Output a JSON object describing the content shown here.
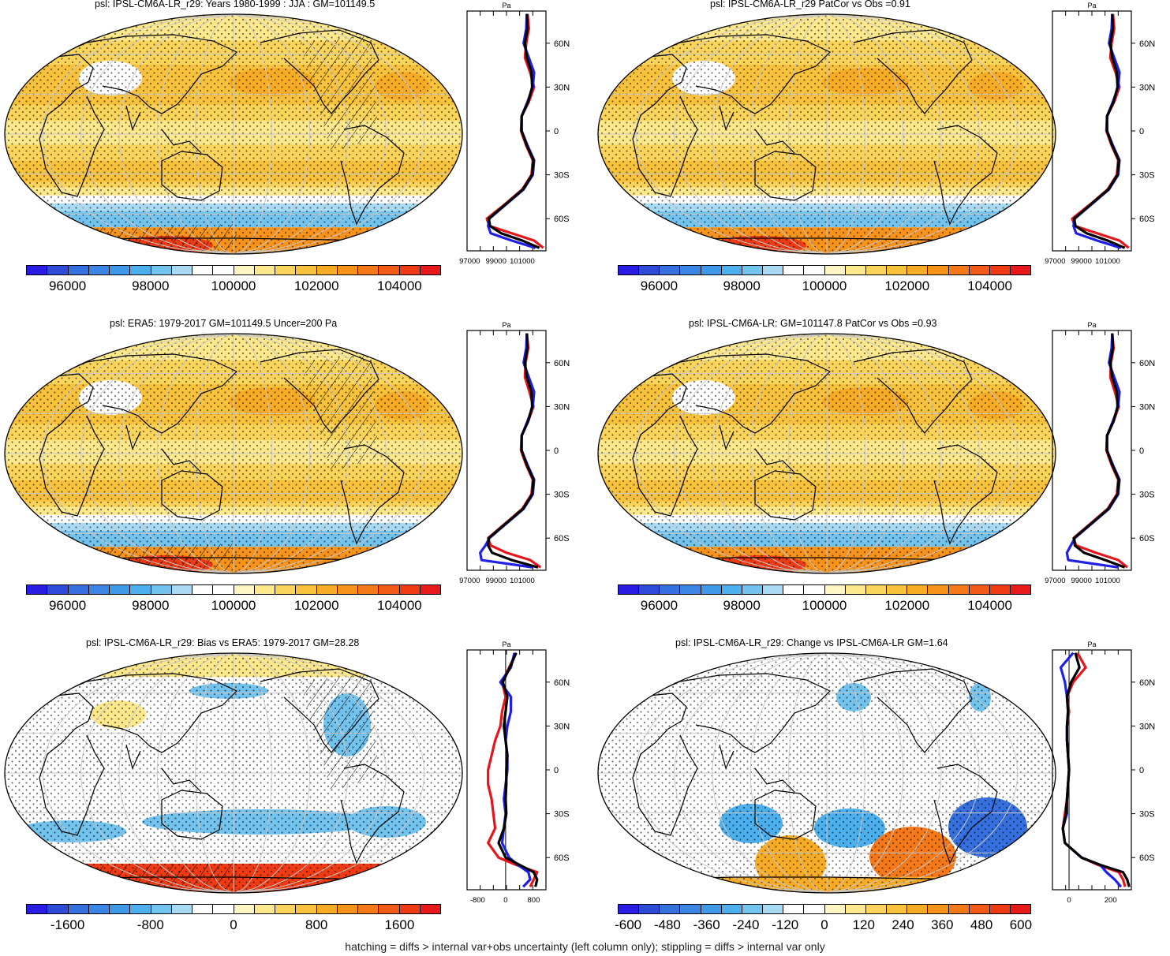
{
  "footer": "hatching = diffs > internal var+obs uncertainty (left column only); stippling = diffs > internal var only",
  "colors": {
    "red_line": "#e8141b",
    "blue_line": "#1f1fe8",
    "black_line": "#000000",
    "graticule": "#c8c8c8"
  },
  "abs_colorbar": {
    "colors": [
      "#2a1de3",
      "#2d4bd8",
      "#3670de",
      "#3b86e4",
      "#3f99e8",
      "#4db0ee",
      "#73c3ef",
      "#a8dbf3",
      "#ffffff",
      "#ffffff",
      "#fff6c4",
      "#fde88c",
      "#fbd55b",
      "#f9c23c",
      "#f8ac25",
      "#f7931b",
      "#f57918",
      "#f25a17",
      "#ef3b14",
      "#e8191a"
    ],
    "labels": [
      "96000",
      "98000",
      "100000",
      "102000",
      "104000"
    ]
  },
  "bias_colorbar": {
    "colors": [
      "#2a1de3",
      "#2d4bd8",
      "#3670de",
      "#3b86e4",
      "#3f99e8",
      "#4db0ee",
      "#73c3ef",
      "#a8dbf3",
      "#ffffff",
      "#ffffff",
      "#fff6c4",
      "#fde88c",
      "#fbd55b",
      "#f9c23c",
      "#f8ac25",
      "#f7931b",
      "#f57918",
      "#f25a17",
      "#ef3b14",
      "#e8191a"
    ],
    "labels": [
      "-1600",
      "-800",
      "0",
      "800",
      "1600"
    ]
  },
  "change_colorbar": {
    "colors": [
      "#2a1de3",
      "#2d4bd8",
      "#3670de",
      "#3b86e4",
      "#3f99e8",
      "#4db0ee",
      "#73c3ef",
      "#a8dbf3",
      "#ffffff",
      "#ffffff",
      "#fff6c4",
      "#fde88c",
      "#fbd55b",
      "#f9c23c",
      "#f8ac25",
      "#f7931b",
      "#f57918",
      "#f25a17",
      "#ef3b14",
      "#e8191a"
    ],
    "labels": [
      "-600",
      "-480",
      "-360",
      "-240",
      "-120",
      "0",
      "120",
      "240",
      "360",
      "480",
      "600"
    ]
  },
  "chart_data": [
    {
      "type": "heatmap",
      "title": "psl: IPSL-CM6A-LR_r29: Years 1980-1999 : JJA : GM=101149.5",
      "map_style": "abs",
      "hatch": true,
      "stipple": true,
      "profile": {
        "unit": "Pa",
        "x_ticks": [
          "97000",
          "99000",
          "101000"
        ],
        "y_ticks": [
          "60N",
          "30N",
          "0",
          "30S",
          "60S"
        ],
        "lat": [
          80,
          70,
          60,
          50,
          40,
          30,
          20,
          10,
          0,
          -10,
          -20,
          -30,
          -40,
          -50,
          -60,
          -65,
          -70,
          -75,
          -80
        ],
        "series": [
          {
            "name": "model",
            "color": "red",
            "values": [
              101400,
              101500,
              101300,
              101200,
              101600,
              101900,
              101500,
              100950,
              100900,
              101300,
              101800,
              101700,
              101000,
              99700,
              98300,
              98500,
              100200,
              101900,
              102600
            ]
          },
          {
            "name": "obs",
            "color": "blue",
            "values": [
              101350,
              101300,
              101100,
              101500,
              101900,
              101800,
              101400,
              100950,
              100950,
              101400,
              101900,
              101800,
              101100,
              99800,
              98500,
              98400,
              98600,
              100200,
              102000
            ]
          },
          {
            "name": "ref",
            "color": "black",
            "values": [
              101350,
              101400,
              101200,
              101350,
              101700,
              101750,
              101450,
              100950,
              100950,
              101350,
              101850,
              101750,
              101050,
              99750,
              98450,
              98550,
              99400,
              101000,
              102300
            ]
          }
        ]
      }
    },
    {
      "type": "heatmap",
      "title": "psl: IPSL-CM6A-LR_r29 PatCor vs Obs =0.91",
      "map_style": "abs",
      "hatch": false,
      "stipple": true,
      "profile": {
        "unit": "Pa",
        "x_ticks": [
          "97000",
          "99000",
          "101000"
        ],
        "y_ticks": [
          "60N",
          "30N",
          "0",
          "30S",
          "60S"
        ],
        "lat": [
          80,
          70,
          60,
          50,
          40,
          30,
          20,
          10,
          0,
          -10,
          -20,
          -30,
          -40,
          -50,
          -60,
          -65,
          -70,
          -75,
          -80
        ],
        "series": [
          {
            "name": "model",
            "color": "red",
            "values": [
              101400,
              101500,
              101300,
              101200,
              101600,
              101900,
              101500,
              100950,
              100900,
              101300,
              101800,
              101700,
              101000,
              99700,
              98300,
              98500,
              100200,
              101900,
              102600
            ]
          },
          {
            "name": "obs",
            "color": "blue",
            "values": [
              101350,
              101300,
              101100,
              101500,
              101900,
              101800,
              101400,
              100950,
              100950,
              101400,
              101900,
              101800,
              101100,
              99800,
              98500,
              98400,
              98600,
              100200,
              102000
            ]
          },
          {
            "name": "ref",
            "color": "black",
            "values": [
              101350,
              101400,
              101200,
              101350,
              101700,
              101750,
              101450,
              100950,
              100950,
              101350,
              101850,
              101750,
              101050,
              99750,
              98450,
              98550,
              99400,
              101000,
              102300
            ]
          }
        ]
      }
    },
    {
      "type": "heatmap",
      "title": "psl: ERA5: 1979-2017 GM=101149.5 Uncer=200 Pa",
      "map_style": "abs",
      "hatch": true,
      "stipple": true,
      "profile": {
        "unit": "Pa",
        "x_ticks": [
          "97000",
          "99000",
          "101000"
        ],
        "y_ticks": [
          "60N",
          "30N",
          "0",
          "30S",
          "60S"
        ],
        "lat": [
          80,
          70,
          60,
          50,
          40,
          30,
          20,
          10,
          0,
          -10,
          -20,
          -30,
          -40,
          -50,
          -60,
          -65,
          -70,
          -75,
          -80
        ],
        "series": [
          {
            "name": "model",
            "color": "red",
            "values": [
              101350,
              101450,
              101250,
              101200,
              101550,
              101850,
              101450,
              100950,
              100900,
              101300,
              101800,
              101700,
              101000,
              99700,
              98400,
              98600,
              99800,
              101600,
              102400
            ]
          },
          {
            "name": "obs",
            "color": "blue",
            "values": [
              101350,
              101300,
              101100,
              101500,
              101900,
              101800,
              101400,
              100950,
              100950,
              101400,
              101900,
              101800,
              101100,
              99800,
              98500,
              98200,
              97800,
              97900,
              101800
            ]
          },
          {
            "name": "ref",
            "color": "black",
            "values": [
              101350,
              101400,
              101200,
              101350,
              101700,
              101750,
              101450,
              100950,
              100950,
              101350,
              101850,
              101750,
              101050,
              99750,
              98450,
              98400,
              98700,
              100200,
              102200
            ]
          }
        ]
      }
    },
    {
      "type": "heatmap",
      "title": "psl: IPSL-CM6A-LR: GM=101147.8 PatCor vs Obs =0.93",
      "map_style": "abs",
      "hatch": false,
      "stipple": true,
      "profile": {
        "unit": "Pa",
        "x_ticks": [
          "97000",
          "99000",
          "101000"
        ],
        "y_ticks": [
          "60N",
          "30N",
          "0",
          "30S",
          "60S"
        ],
        "lat": [
          80,
          70,
          60,
          50,
          40,
          30,
          20,
          10,
          0,
          -10,
          -20,
          -30,
          -40,
          -50,
          -60,
          -65,
          -70,
          -75,
          -80
        ],
        "series": [
          {
            "name": "model",
            "color": "red",
            "values": [
              101350,
              101450,
              101250,
              101200,
              101550,
              101850,
              101450,
              100950,
              100900,
              101300,
              101800,
              101700,
              101000,
              99700,
              98400,
              98600,
              100100,
              101800,
              102500
            ]
          },
          {
            "name": "obs",
            "color": "blue",
            "values": [
              101350,
              101300,
              101100,
              101500,
              101900,
              101800,
              101400,
              100950,
              100950,
              101400,
              101900,
              101800,
              101100,
              99800,
              98500,
              98200,
              97900,
              98000,
              101800
            ]
          },
          {
            "name": "ref",
            "color": "black",
            "values": [
              101350,
              101400,
              101200,
              101350,
              101700,
              101750,
              101450,
              100950,
              100950,
              101350,
              101850,
              101750,
              101050,
              99750,
              98450,
              98500,
              99200,
              100800,
              102300
            ]
          }
        ]
      }
    },
    {
      "type": "heatmap",
      "title": "psl: IPSL-CM6A-LR_r29: Bias vs ERA5: 1979-2017 GM=28.28",
      "map_style": "bias",
      "hatch": true,
      "stipple": true,
      "profile": {
        "unit": "Pa",
        "x_ticks": [
          "-800",
          "0",
          "800"
        ],
        "y_ticks": [
          "60N",
          "30N",
          "0",
          "30S",
          "60S"
        ],
        "lat": [
          80,
          70,
          60,
          50,
          40,
          30,
          20,
          10,
          0,
          -10,
          -20,
          -30,
          -40,
          -50,
          -60,
          -65,
          -70,
          -75,
          -80
        ],
        "series": [
          {
            "name": "model",
            "color": "red",
            "values": [
              300,
              100,
              -100,
              0,
              -100,
              -150,
              -300,
              -400,
              -500,
              -500,
              -400,
              -350,
              -300,
              -500,
              -200,
              300,
              900,
              800,
              700
            ]
          },
          {
            "name": "obs",
            "color": "blue",
            "values": [
              250,
              150,
              -150,
              150,
              150,
              50,
              0,
              50,
              50,
              0,
              -50,
              0,
              -50,
              -100,
              100,
              350,
              650,
              700,
              500
            ]
          },
          {
            "name": "ref",
            "color": "black",
            "values": [
              300,
              120,
              -80,
              50,
              0,
              -50,
              0,
              50,
              20,
              20,
              0,
              20,
              -50,
              -200,
              0,
              400,
              800,
              900,
              850
            ]
          }
        ]
      }
    },
    {
      "type": "heatmap",
      "title": "psl: IPSL-CM6A-LR_r29: Change vs IPSL-CM6A-LR GM=1.64",
      "map_style": "change",
      "hatch": false,
      "stipple": true,
      "profile": {
        "unit": "Pa",
        "x_ticks": [
          "0",
          "200"
        ],
        "y_ticks": [
          "60N",
          "30N",
          "0",
          "30S",
          "60S"
        ],
        "lat": [
          80,
          70,
          60,
          50,
          40,
          30,
          20,
          10,
          0,
          -10,
          -20,
          -30,
          -40,
          -50,
          -60,
          -65,
          -70,
          -75,
          -80
        ],
        "series": [
          {
            "name": "model",
            "color": "red",
            "values": [
              40,
              80,
              20,
              -10,
              0,
              -10,
              -10,
              -5,
              0,
              -5,
              -10,
              -20,
              -30,
              -20,
              60,
              140,
              240,
              260,
              270
            ]
          },
          {
            "name": "obs",
            "color": "blue",
            "values": [
              20,
              -40,
              -20,
              -10,
              -5,
              -10,
              -10,
              -5,
              0,
              -5,
              -10,
              -10,
              -30,
              -20,
              60,
              150,
              180,
              220,
              250
            ]
          },
          {
            "name": "ref",
            "color": "black",
            "values": [
              30,
              50,
              10,
              -10,
              -5,
              -10,
              -10,
              -5,
              0,
              -5,
              -10,
              -15,
              -30,
              -20,
              60,
              150,
              260,
              280,
              290
            ]
          }
        ]
      }
    }
  ]
}
